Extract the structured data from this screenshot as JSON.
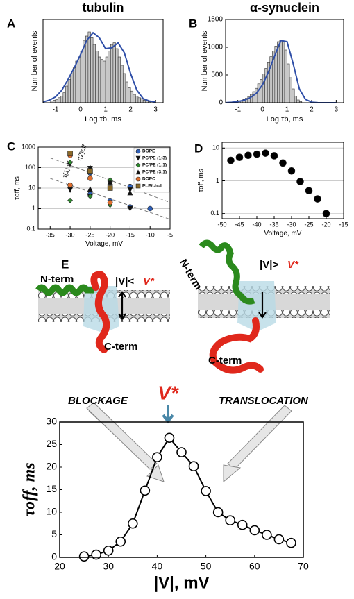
{
  "chart_data": [
    {
      "type": "histogram",
      "label": "A",
      "title": "tubulin",
      "xlabel": "Log τb, ms",
      "ylabel": "Number of events",
      "xlim": [
        -1.5,
        3.3
      ],
      "xticks": [
        -1,
        0,
        1,
        2,
        3
      ],
      "ylim": [
        0,
        100
      ],
      "color": "#c8c8c8",
      "bins": [
        -1.2,
        -1.1,
        -1.0,
        -0.9,
        -0.8,
        -0.7,
        -0.6,
        -0.5,
        -0.4,
        -0.3,
        -0.2,
        -0.1,
        0.0,
        0.1,
        0.2,
        0.3,
        0.4,
        0.5,
        0.6,
        0.7,
        0.8,
        0.9,
        1.0,
        1.1,
        1.2,
        1.3,
        1.4,
        1.5,
        1.6,
        1.7,
        1.8,
        1.9,
        2.0,
        2.1,
        2.2,
        2.3,
        2.4,
        2.5,
        2.6,
        2.7,
        2.8
      ],
      "values": [
        2,
        3,
        4,
        6,
        8,
        12,
        20,
        28,
        35,
        42,
        50,
        55,
        62,
        75,
        80,
        85,
        78,
        70,
        62,
        55,
        52,
        50,
        55,
        62,
        70,
        72,
        65,
        55,
        45,
        35,
        25,
        18,
        14,
        10,
        8,
        6,
        5,
        3,
        2,
        1
      ],
      "fit": {
        "color": "#2f4fa8",
        "x": [
          -1.5,
          -1.25,
          -1,
          -0.75,
          -0.5,
          -0.25,
          0,
          0.25,
          0.5,
          0.75,
          1,
          1.25,
          1.5,
          1.75,
          2,
          2.25,
          2.5,
          2.75,
          3
        ],
        "values": [
          1,
          3,
          7,
          15,
          28,
          42,
          58,
          75,
          84,
          78,
          65,
          66,
          72,
          60,
          35,
          15,
          5,
          2,
          1
        ]
      }
    },
    {
      "type": "histogram",
      "label": "B",
      "title": "α-synuclein",
      "xlabel": "Log τb, ms",
      "ylabel": "Number of events",
      "xlim": [
        -1.5,
        3.3
      ],
      "xticks": [
        -1,
        0,
        1,
        2,
        3
      ],
      "ylim": [
        0,
        1500
      ],
      "yticks": [
        0,
        500,
        1000,
        1500
      ],
      "color": "#c8c8c8",
      "bins": [
        -1.2,
        -1.1,
        -1.0,
        -0.9,
        -0.8,
        -0.7,
        -0.6,
        -0.5,
        -0.4,
        -0.3,
        -0.2,
        -0.1,
        0.0,
        0.1,
        0.2,
        0.3,
        0.4,
        0.5,
        0.6,
        0.7,
        0.8,
        0.9,
        1.0,
        1.1,
        1.2,
        1.3,
        1.4,
        1.5,
        1.6
      ],
      "values": [
        15,
        20,
        30,
        40,
        60,
        80,
        110,
        150,
        200,
        260,
        340,
        420,
        520,
        620,
        720,
        830,
        930,
        1020,
        1100,
        1130,
        1100,
        950,
        700,
        450,
        250,
        120,
        50,
        20
      ],
      "fit": {
        "color": "#2f4fa8",
        "x": [
          -1.5,
          -1.25,
          -1,
          -0.75,
          -0.5,
          -0.25,
          0,
          0.25,
          0.5,
          0.75,
          1,
          1.25,
          1.5,
          1.75,
          2,
          2.25,
          2.5,
          2.75,
          3
        ],
        "values": [
          2,
          8,
          20,
          45,
          90,
          170,
          320,
          560,
          850,
          1120,
          1100,
          700,
          250,
          60,
          10,
          2,
          0,
          0,
          0
        ]
      }
    },
    {
      "type": "scatter",
      "label": "C",
      "xlabel": "Voltage, mV",
      "ylabel": "τoff, ms",
      "y_log": true,
      "grid": true,
      "xlim": [
        -38,
        -5
      ],
      "xticks": [
        -35,
        -30,
        -25,
        -20,
        -15,
        -10,
        -5
      ],
      "ylim": [
        0.1,
        1000
      ],
      "yticks": [
        0.1,
        1,
        10,
        100,
        1000
      ],
      "legend": "upper right",
      "annotations": [
        "τ(2)off",
        "τ(1)off"
      ],
      "fit_lines": [
        {
          "x": [
            -35,
            -5
          ],
          "values": [
            300,
            2
          ]
        },
        {
          "x": [
            -35,
            -5
          ],
          "values": [
            30,
            0.3
          ]
        }
      ],
      "series": [
        {
          "name": "DOPE",
          "color": "#2e5fb8",
          "marker": "circle",
          "x": [
            -25,
            -25,
            -20,
            -20,
            -15,
            -15,
            -10,
            -10
          ],
          "values": [
            55,
            5,
            22,
            2.5,
            12,
            1.2,
            10,
            1
          ]
        },
        {
          "name": "PC/PE (1:3)",
          "color": "#111111",
          "marker": "triangle-down",
          "x": [
            -30,
            -30,
            -25,
            -25,
            -20,
            -20,
            -15,
            -15
          ],
          "values": [
            150,
            8,
            90,
            4,
            18,
            1.5,
            8,
            1
          ]
        },
        {
          "name": "PC/PE (1:1)",
          "color": "#2e8b2e",
          "marker": "diamond",
          "x": [
            -30,
            -30,
            -25,
            -25,
            -20,
            -20
          ],
          "values": [
            180,
            2.5,
            60,
            4,
            25,
            1.5
          ]
        },
        {
          "name": "PC/PE (3:1)",
          "color": "#111111",
          "marker": "triangle-up",
          "x": [
            -25,
            -25,
            -20,
            -15
          ],
          "values": [
            100,
            9,
            20,
            6
          ]
        },
        {
          "name": "DOPC",
          "color": "#e07030",
          "marker": "circle",
          "x": [
            -30,
            -30,
            -25,
            -20
          ],
          "values": [
            400,
            14,
            30,
            2
          ]
        },
        {
          "name": "PLE/chol",
          "color": "#8a6a2a",
          "marker": "square",
          "x": [
            -30,
            -25,
            -20
          ],
          "values": [
            500,
            70,
            10
          ]
        }
      ]
    },
    {
      "type": "scatter",
      "label": "D",
      "xlabel": "Voltage, mV",
      "ylabel": "τoff, ms",
      "y_log": true,
      "grid": true,
      "xlim": [
        -50,
        -15
      ],
      "xticks": [
        -50,
        -45,
        -40,
        -35,
        -30,
        -25,
        -20,
        -15
      ],
      "ylim": [
        0.07,
        15
      ],
      "yticks": [
        0.1,
        1,
        10
      ],
      "series": [
        {
          "color": "#000000",
          "marker": "circle",
          "x": [
            -47.5,
            -45,
            -42.5,
            -40,
            -37.5,
            -35,
            -32.5,
            -30,
            -27.5,
            -25,
            -22.5,
            -20
          ],
          "values": [
            4.2,
            5.2,
            6,
            6.5,
            7,
            5.8,
            3.5,
            2,
            0.95,
            0.5,
            0.28,
            0.1
          ]
        }
      ]
    },
    {
      "type": "line",
      "label": "E",
      "xlabel": "|V|, mV",
      "ylabel": "τoff, ms",
      "color": "#000000",
      "xlim": [
        20,
        70
      ],
      "xticks": [
        20,
        30,
        40,
        50,
        60,
        70
      ],
      "ylim": [
        0,
        30
      ],
      "yticks": [
        0,
        5,
        10,
        15,
        20,
        25,
        30
      ],
      "x": [
        25,
        27.5,
        30,
        32.5,
        35,
        37.5,
        40,
        42.5,
        45,
        47.5,
        50,
        52.5,
        55,
        57.5,
        60,
        62.5,
        65,
        67.5
      ],
      "values": [
        0.2,
        0.6,
        1.5,
        3.5,
        7.5,
        14.8,
        22.2,
        26.5,
        23.3,
        20.2,
        14.7,
        10,
        8.2,
        7.2,
        6,
        5,
        4,
        3.2
      ],
      "annotations": [
        "N-term",
        "C-term",
        "|V|<",
        "V*",
        "N-term",
        "C-term",
        "|V|>",
        "V*",
        "BLOCKAGE",
        "TRANSLOCATION",
        "V*"
      ]
    }
  ]
}
